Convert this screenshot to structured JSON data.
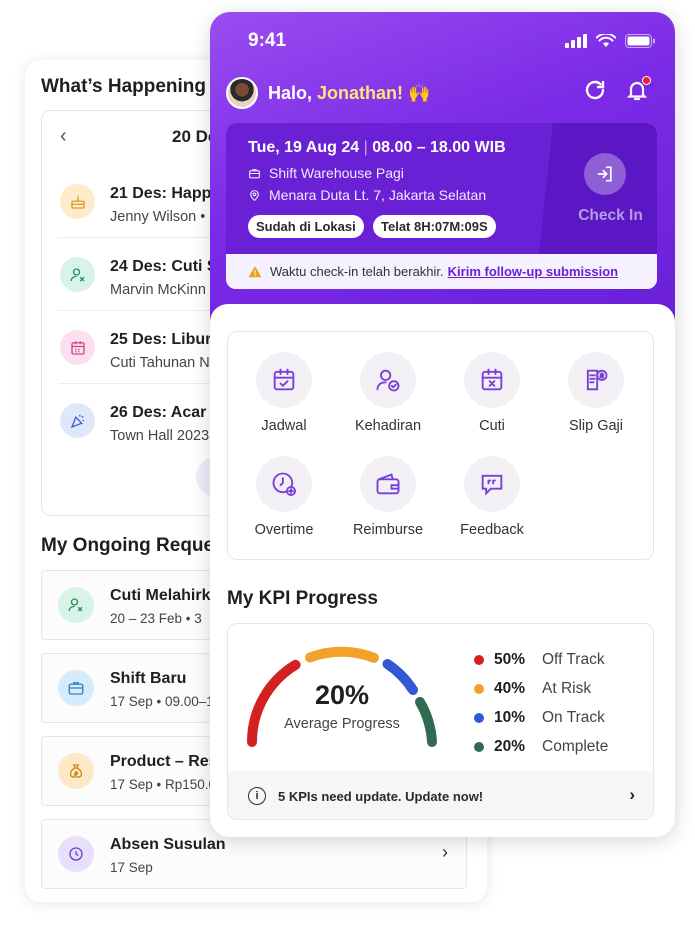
{
  "back": {
    "title": "What’s Happening T",
    "calendar": {
      "prev_icon": "chevron-left-icon",
      "date": "20 De",
      "events": [
        {
          "title": "21 Des: Happy",
          "subtitle": "Jenny Wilson •",
          "icon": "cake-icon",
          "color": "#fdeccb"
        },
        {
          "title": "24 Des: Cuti S",
          "subtitle": "Marvin McKinn",
          "icon": "user-x-icon",
          "color": "#d8f3e7"
        },
        {
          "title": "25 Des: Libur",
          "subtitle": "Cuti Tahunan N",
          "icon": "calendar-icon",
          "color": "#fde0ef"
        },
        {
          "title": "26 Des:  Acar",
          "subtitle": "Town Hall 2023",
          "icon": "party-icon",
          "color": "#dfe8fb"
        }
      ]
    },
    "ongoing_title": "My Ongoing Reque",
    "requests": [
      {
        "title": "Cuti Melahirk",
        "subtitle": "20 – 23 Feb • 3",
        "icon": "user-x-icon",
        "color": "#d8f3e7"
      },
      {
        "title": "Shift Baru",
        "subtitle": "17 Sep • 09.00–1",
        "icon": "briefcase-icon",
        "color": "#d6ecfb"
      },
      {
        "title": "Product – Res",
        "subtitle": "17 Sep • Rp150.0",
        "icon": "money-bag-icon",
        "color": "#fde9c8"
      },
      {
        "title": "Absen Susulan",
        "subtitle": "17 Sep",
        "icon": "clock-icon",
        "color": "#e8e0fb"
      }
    ]
  },
  "phone": {
    "status_time": "9:41",
    "greeting_prefix": "Halo, ",
    "greeting_name": "Jonathan!",
    "greeting_emoji": "🙌",
    "shift": {
      "date": "Tue, 19 Aug 24",
      "separator": "|",
      "hours": "08.00 – 18.00 WIB",
      "shift_name": "Shift Warehouse Pagi",
      "location": "Menara Duta Lt. 7, Jakarta Selatan",
      "badge_location": "Sudah di Lokasi",
      "badge_late": "Telat 8H:07M:09S",
      "checkin_label": "Check In",
      "warning_text": "Waktu check-in telah berakhir.",
      "warning_link": "Kirim follow-up submission"
    },
    "menu": [
      {
        "label": "Jadwal",
        "icon": "calendar-check-icon"
      },
      {
        "label": "Kehadiran",
        "icon": "user-check-icon"
      },
      {
        "label": "Cuti",
        "icon": "calendar-x-icon"
      },
      {
        "label": "Slip Gaji",
        "icon": "payslip-icon"
      },
      {
        "label": "Overtime",
        "icon": "clock-plus-icon"
      },
      {
        "label": "Reimburse",
        "icon": "wallet-icon"
      },
      {
        "label": "Feedback",
        "icon": "chat-quote-icon"
      }
    ],
    "kpi": {
      "title": "My KPI Progress",
      "average_value": "20%",
      "average_label": "Average Progress",
      "legend": [
        {
          "pct": "50%",
          "label": "Off Track",
          "color": "#d32020"
        },
        {
          "pct": "40%",
          "label": "At Risk",
          "color": "#f2a22a"
        },
        {
          "pct": "10%",
          "label": "On Track",
          "color": "#3358d6"
        },
        {
          "pct": "20%",
          "label": "Complete",
          "color": "#2f6a52"
        }
      ],
      "footer_text": "5 KPIs need update. Update now!"
    }
  }
}
